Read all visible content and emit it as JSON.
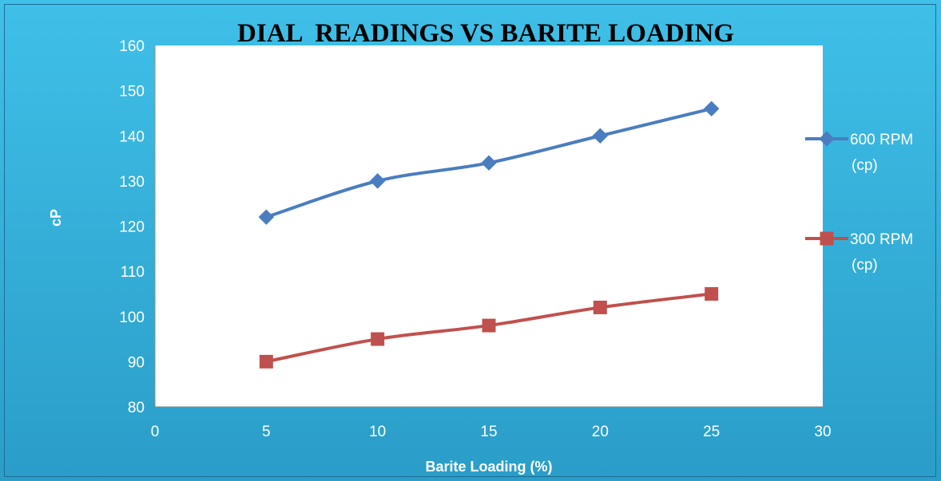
{
  "chart_data": {
    "type": "line",
    "title": "DIAL  READINGS VS BARITE LOADING",
    "xlabel": "Barite Loading (%)",
    "ylabel": "cP",
    "xlim": [
      0,
      30
    ],
    "ylim": [
      80,
      160
    ],
    "x_ticks": [
      0,
      5,
      10,
      15,
      20,
      25,
      30
    ],
    "y_ticks": [
      80,
      90,
      100,
      110,
      120,
      130,
      140,
      150,
      160
    ],
    "x": [
      5,
      10,
      15,
      20,
      25
    ],
    "series": [
      {
        "name": "600 RPM (cp)",
        "name_lines": [
          "600 RPM",
          "(cp)"
        ],
        "values": [
          122,
          130,
          134,
          140,
          146
        ],
        "marker": "diamond",
        "color": "#4a7dbf"
      },
      {
        "name": "300 RPM (cp)",
        "name_lines": [
          "300 RPM",
          "(cp)"
        ],
        "values": [
          90,
          95,
          98,
          102,
          105
        ],
        "marker": "square",
        "color": "#c0504d"
      }
    ],
    "grid": false,
    "legend_position": "right",
    "smoothed": true
  },
  "style": {
    "background_gradient_top": "#3fc0e8",
    "background_gradient_bottom": "#2a9dc8",
    "plot_background": "#ffffff",
    "axis_line_color": "#8c8c8c"
  }
}
